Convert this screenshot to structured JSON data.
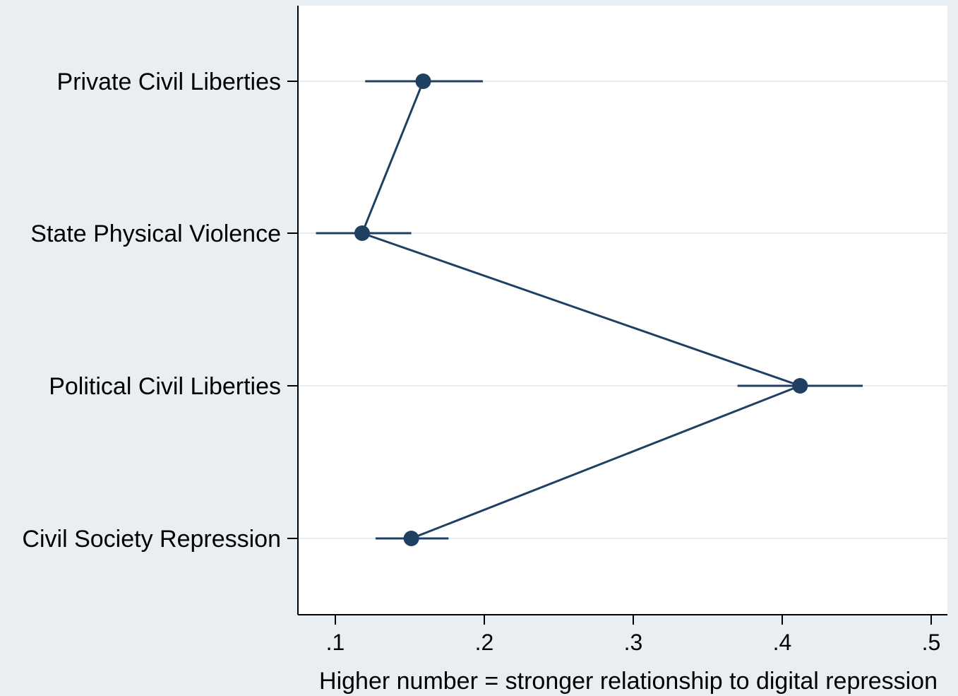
{
  "chart_data": {
    "type": "scatter",
    "categories": [
      "Private Civil Liberties",
      "State Physical Violence",
      "Political Civil Liberties",
      "Civil Society Repression"
    ],
    "values": [
      0.159,
      0.118,
      0.412,
      0.151
    ],
    "ci_lower": [
      0.12,
      0.087,
      0.37,
      0.127
    ],
    "ci_upper": [
      0.199,
      0.151,
      0.454,
      0.176
    ],
    "connected": true,
    "x_ticks": [
      0.1,
      0.2,
      0.3,
      0.4,
      0.5
    ],
    "x_tick_labels": [
      ".1",
      ".2",
      ".3",
      ".4",
      ".5"
    ],
    "xlabel": "Higher number = stronger relationship to digital repression",
    "ylabel": "",
    "title": "",
    "grid": "horizontal",
    "colors": {
      "marker": "#1f3f63",
      "background": "#e9eef2",
      "plot_area": "#ffffff",
      "gridline": "#e6edf1"
    }
  }
}
